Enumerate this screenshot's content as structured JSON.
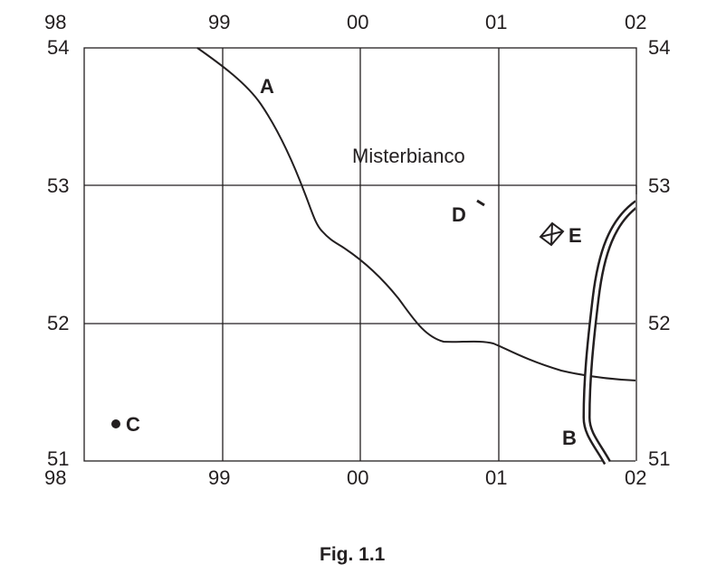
{
  "figure": {
    "caption": "Fig. 1.1",
    "place_name": "Misterbianco",
    "eastings": [
      "98",
      "99",
      "00",
      "01",
      "02"
    ],
    "northings": [
      "51",
      "52",
      "53",
      "54"
    ],
    "features": {
      "river": "A",
      "road": "B",
      "point": "C",
      "symbol_d": "D",
      "symbol_e": "E"
    },
    "colors": {
      "ink": "#231f20"
    }
  }
}
